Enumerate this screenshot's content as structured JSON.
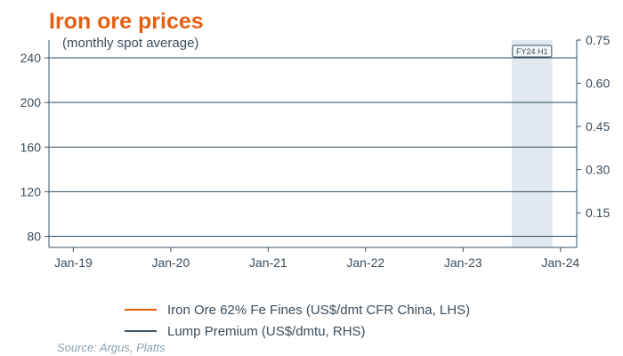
{
  "title": "Iron ore prices",
  "subtitle": "(monthly spot average)",
  "source": "Source: Argus, Platts",
  "highlight_label": "FY24 H1",
  "colors": {
    "fines": "#e35f13",
    "lump": "#3b5366",
    "grid": "#2e4a5e",
    "highlight": "#e2e9ee"
  },
  "chart_data": {
    "type": "line",
    "x_ticks": [
      "Jan-19",
      "Jan-20",
      "Jan-21",
      "Jan-22",
      "Jan-23",
      "Jan-24"
    ],
    "xlim": [
      "2018-10",
      "2024-03"
    ],
    "highlight_range": [
      "2023-07",
      "2023-12"
    ],
    "left_axis": {
      "ticks": [
        80,
        120,
        160,
        200,
        240
      ],
      "ylim": [
        70,
        256
      ]
    },
    "right_axis": {
      "ticks": [
        "0.15",
        "0.30",
        "0.45",
        "0.60",
        "0.75"
      ],
      "ylim": [
        0.03,
        0.75
      ]
    },
    "series": [
      {
        "name": "Iron Ore 62% Fe Fines (US$/dmt CFR China, LHS)",
        "axis": "left",
        "values": []
      },
      {
        "name": "Lump Premium (US$/dmtu, RHS)",
        "axis": "right",
        "values": []
      }
    ],
    "grid": "horizontal"
  }
}
